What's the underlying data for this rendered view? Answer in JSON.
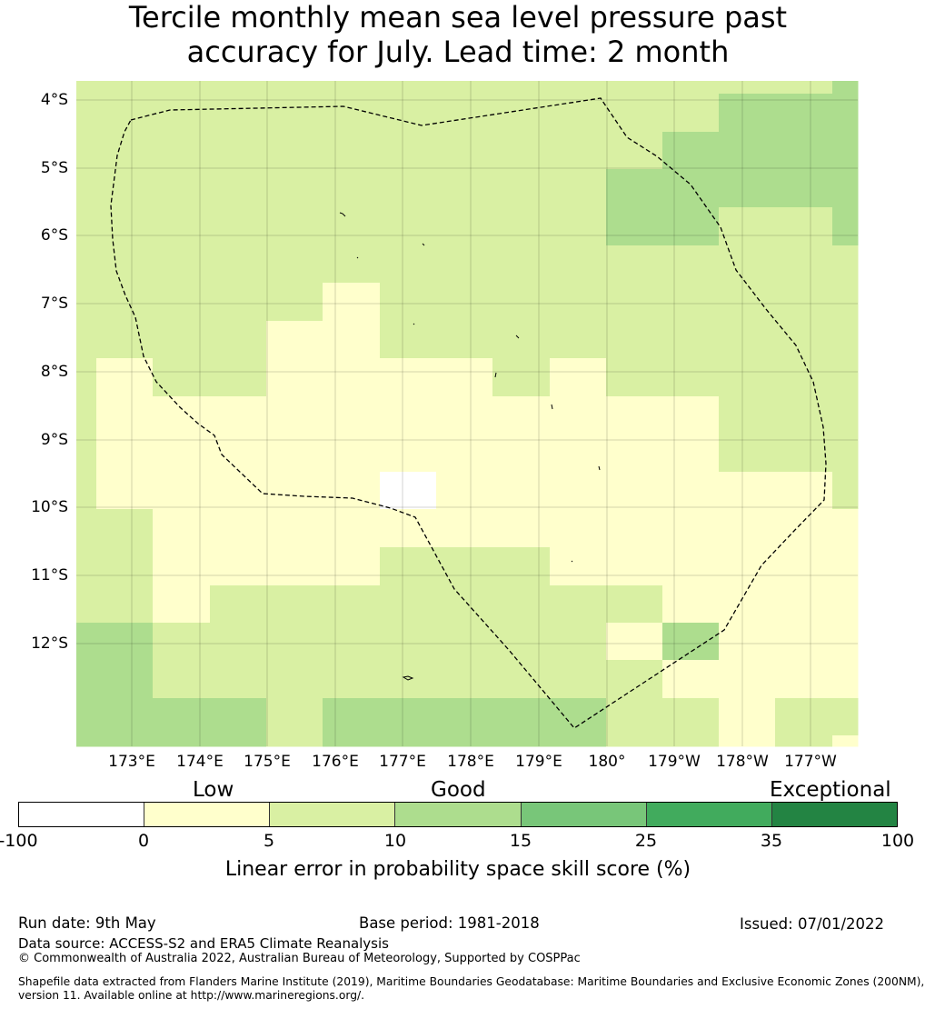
{
  "title": {
    "line1": "Tercile monthly mean sea level pressure past",
    "line2": "accuracy for July. Lead time: 2 month"
  },
  "map": {
    "lat_labels": [
      "4°S",
      "5°S",
      "6°S",
      "7°S",
      "8°S",
      "9°S",
      "10°S",
      "11°S",
      "12°S"
    ],
    "lon_labels": [
      "173°E",
      "174°E",
      "175°E",
      "176°E",
      "177°E",
      "178°E",
      "179°E",
      "180°",
      "179°W",
      "178°W",
      "177°W"
    ],
    "boundary_line": "dashed black",
    "gridlines": true,
    "cell_colors_by_band": {
      "-100..0": "#ffffff",
      "0..5": "#ffffcc",
      "5..10": "#d9f0a3",
      "10..15": "#addd8e",
      "15..25": "#78c679",
      "25..35": "#41ab5d",
      "35..100": "#238443"
    }
  },
  "legend": {
    "categories": [
      "Low",
      "Good",
      "Exceptional"
    ],
    "ticks": [
      "-100",
      "0",
      "5",
      "10",
      "15",
      "25",
      "35",
      "100"
    ],
    "colors": [
      "#ffffff",
      "#ffffcc",
      "#d9f0a3",
      "#addd8e",
      "#78c679",
      "#41ab5d",
      "#238443"
    ],
    "label": "Linear error in probability space skill score (%)"
  },
  "footer": {
    "run_date": "Run date: 9th May",
    "base_period": "Base period: 1981-2018",
    "issued": "Issued: 07/01/2022",
    "data_source": "Data source: ACCESS-S2 and ERA5 Climate Reanalysis",
    "copyright": "© Commonwealth of Australia 2022, Australian Bureau of Meteorology, Supported by COSPPac",
    "shapefile_line1": "Shapefile data extracted from Flanders Marine Institute (2019), Maritime Boundaries Geodatabase: Maritime Boundaries and Exclusive Economic Zones (200NM),",
    "shapefile_line2": "version 11. Available online at http://www.marineregions.org/."
  }
}
